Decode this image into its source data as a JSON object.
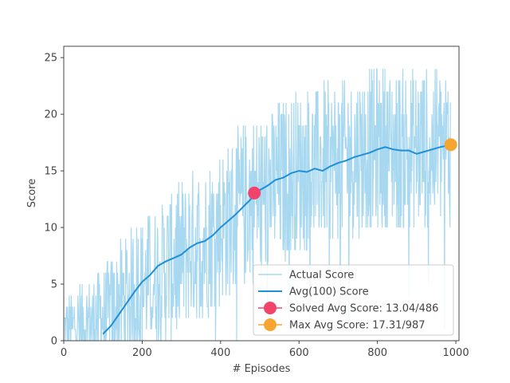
{
  "chart_data": {
    "type": "line",
    "title": "",
    "xlabel": "# Episodes",
    "ylabel": "Score",
    "xlim": [
      0,
      1008
    ],
    "ylim": [
      0,
      26
    ],
    "x_ticks": [
      0,
      200,
      400,
      600,
      800,
      1000
    ],
    "x_tick_labels": [
      "0",
      "200",
      "400",
      "600",
      "800",
      "1000"
    ],
    "y_ticks": [
      0,
      5,
      10,
      15,
      20,
      25
    ],
    "y_tick_labels": [
      "0",
      "5",
      "10",
      "15",
      "20",
      "25"
    ],
    "grid": false,
    "legend_position": "lower-right",
    "series": [
      {
        "name": "Actual Score",
        "color": "#a8d8f0",
        "style": "raw-noisy-line",
        "episodes": 987,
        "trend": [
          [
            0,
            1
          ],
          [
            100,
            2
          ],
          [
            200,
            5
          ],
          [
            300,
            7.5
          ],
          [
            400,
            10
          ],
          [
            480,
            12.5
          ],
          [
            600,
            15
          ],
          [
            700,
            16
          ],
          [
            800,
            17
          ],
          [
            900,
            17
          ],
          [
            987,
            17.3
          ]
        ],
        "noise_spread": [
          [
            0,
            1.5
          ],
          [
            100,
            2.5
          ],
          [
            200,
            3.5
          ],
          [
            400,
            4
          ],
          [
            600,
            4
          ],
          [
            800,
            4
          ],
          [
            987,
            4
          ]
        ],
        "max_value": 26
      },
      {
        "name": "Avg(100) Score",
        "color": "#1f8fd6",
        "x": [
          100,
          120,
          140,
          160,
          180,
          200,
          220,
          240,
          260,
          280,
          300,
          320,
          340,
          360,
          380,
          400,
          420,
          440,
          460,
          480,
          500,
          520,
          540,
          560,
          580,
          600,
          620,
          640,
          660,
          680,
          700,
          720,
          740,
          760,
          780,
          800,
          820,
          840,
          860,
          880,
          900,
          920,
          940,
          960,
          987
        ],
        "y": [
          0.6,
          1.3,
          2.3,
          3.3,
          4.3,
          5.2,
          5.8,
          6.6,
          7.0,
          7.3,
          7.6,
          8.2,
          8.6,
          8.8,
          9.3,
          10.0,
          10.6,
          11.2,
          11.9,
          12.6,
          13.3,
          13.7,
          14.2,
          14.4,
          14.8,
          15.0,
          14.9,
          15.2,
          15.0,
          15.4,
          15.7,
          15.9,
          16.2,
          16.4,
          16.6,
          16.9,
          17.1,
          16.9,
          16.8,
          16.8,
          16.5,
          16.7,
          16.9,
          17.1,
          17.3
        ]
      }
    ],
    "markers": [
      {
        "name": "Solved Avg Score: 13.04/486",
        "x": 486,
        "y": 13.04,
        "color": "#f2436b"
      },
      {
        "name": "Max Avg Score: 17.31/987",
        "x": 987,
        "y": 17.31,
        "color": "#f6a630"
      }
    ]
  }
}
